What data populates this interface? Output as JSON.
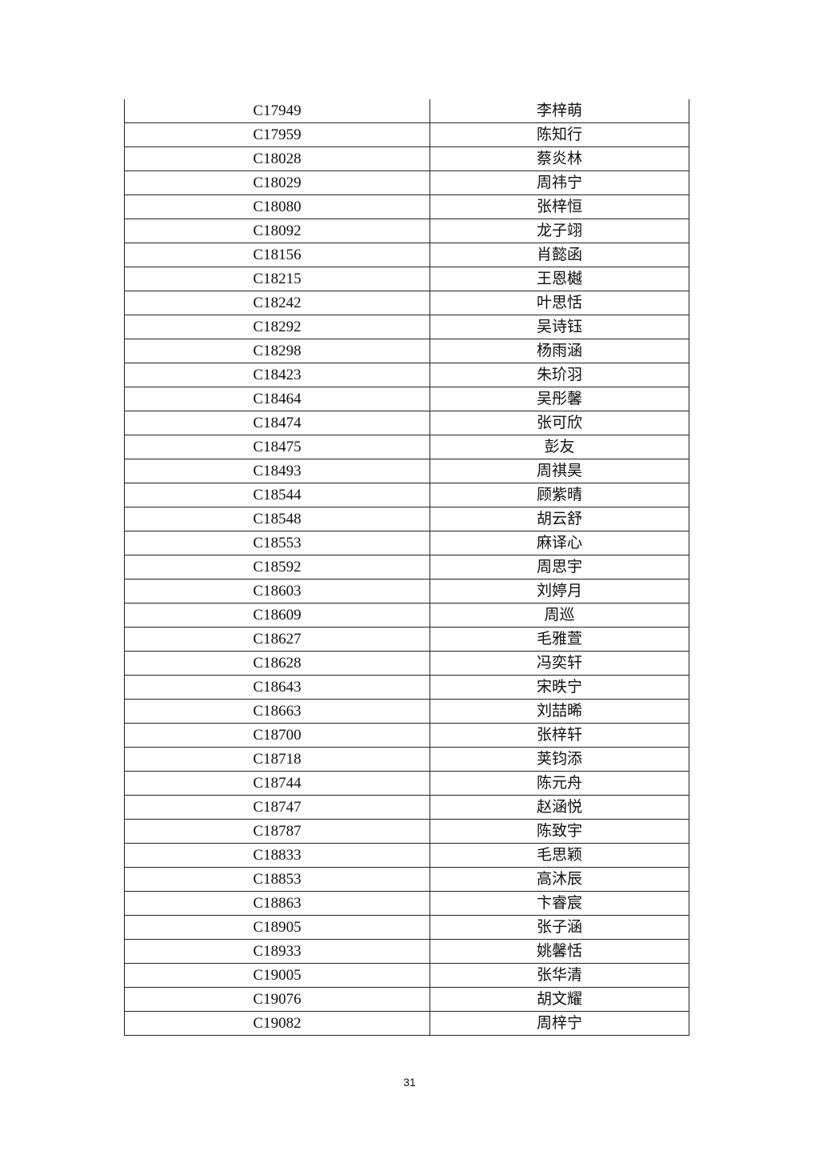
{
  "table": {
    "rows": [
      [
        "C17949",
        "李梓萌"
      ],
      [
        "C17959",
        "陈知行"
      ],
      [
        "C18028",
        "蔡炎林"
      ],
      [
        "C18029",
        "周祎宁"
      ],
      [
        "C18080",
        "张梓恒"
      ],
      [
        "C18092",
        "龙子翊"
      ],
      [
        "C18156",
        "肖懿函"
      ],
      [
        "C18215",
        "王恩樾"
      ],
      [
        "C18242",
        "叶思恬"
      ],
      [
        "C18292",
        "吴诗钰"
      ],
      [
        "C18298",
        "杨雨涵"
      ],
      [
        "C18423",
        "朱玠羽"
      ],
      [
        "C18464",
        "吴彤馨"
      ],
      [
        "C18474",
        "张可欣"
      ],
      [
        "C18475",
        "彭友"
      ],
      [
        "C18493",
        "周祺昊"
      ],
      [
        "C18544",
        "顾紫晴"
      ],
      [
        "C18548",
        "胡云舒"
      ],
      [
        "C18553",
        "麻译心"
      ],
      [
        "C18592",
        "周思宇"
      ],
      [
        "C18603",
        "刘婷月"
      ],
      [
        "C18609",
        "周巡"
      ],
      [
        "C18627",
        "毛雅萱"
      ],
      [
        "C18628",
        "冯奕轩"
      ],
      [
        "C18643",
        "宋昳宁"
      ],
      [
        "C18663",
        "刘喆晞"
      ],
      [
        "C18700",
        "张梓轩"
      ],
      [
        "C18718",
        "荚钧添"
      ],
      [
        "C18744",
        "陈元舟"
      ],
      [
        "C18747",
        "赵涵悦"
      ],
      [
        "C18787",
        "陈致宇"
      ],
      [
        "C18833",
        "毛思颖"
      ],
      [
        "C18853",
        "高沐辰"
      ],
      [
        "C18863",
        "卞睿宸"
      ],
      [
        "C18905",
        "张子涵"
      ],
      [
        "C18933",
        "姚馨恬"
      ],
      [
        "C19005",
        "张华清"
      ],
      [
        "C19076",
        "胡文耀"
      ],
      [
        "C19082",
        "周梓宁"
      ]
    ]
  },
  "footer": {
    "page_number": "31"
  }
}
